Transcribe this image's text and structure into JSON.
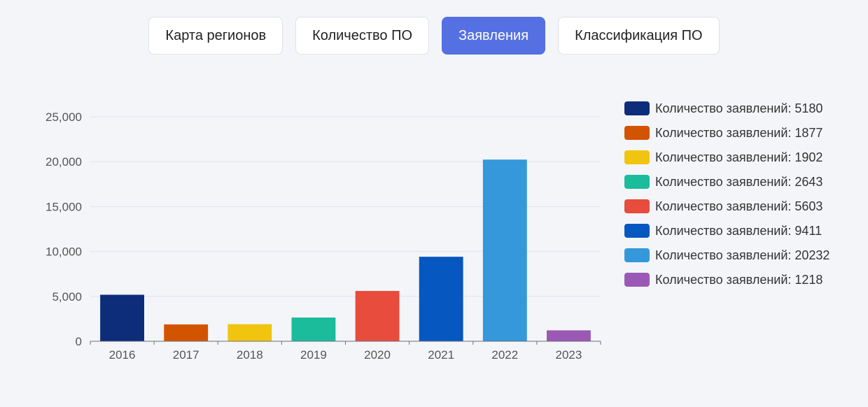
{
  "tabs": [
    {
      "label": "Карта регионов",
      "active": false
    },
    {
      "label": "Количество ПО",
      "active": false
    },
    {
      "label": "Заявления",
      "active": true
    },
    {
      "label": "Классификация ПО",
      "active": false
    }
  ],
  "colors": {
    "active_tab": "#5470e3"
  },
  "chart_data": {
    "type": "bar",
    "categories": [
      "2016",
      "2017",
      "2018",
      "2019",
      "2020",
      "2021",
      "2022",
      "2023"
    ],
    "values": [
      5180,
      1877,
      1902,
      2643,
      5603,
      9411,
      20232,
      1218
    ],
    "colors": [
      "#0d2c7a",
      "#d35400",
      "#f1c40f",
      "#1abc9c",
      "#e74c3c",
      "#0657c0",
      "#3498db",
      "#9b59b6"
    ],
    "ylim": [
      0,
      25000
    ],
    "yticks": [
      "0",
      "5,000",
      "10,000",
      "15,000",
      "20,000",
      "25,000"
    ],
    "legend_position": "right",
    "legend": [
      "Количество заявлений: 5180",
      "Количество заявлений: 1877",
      "Количество заявлений: 1902",
      "Количество заявлений: 2643",
      "Количество заявлений: 5603",
      "Количество заявлений: 9411",
      "Количество заявлений: 20232",
      "Количество заявлений: 1218"
    ],
    "grid": true
  }
}
